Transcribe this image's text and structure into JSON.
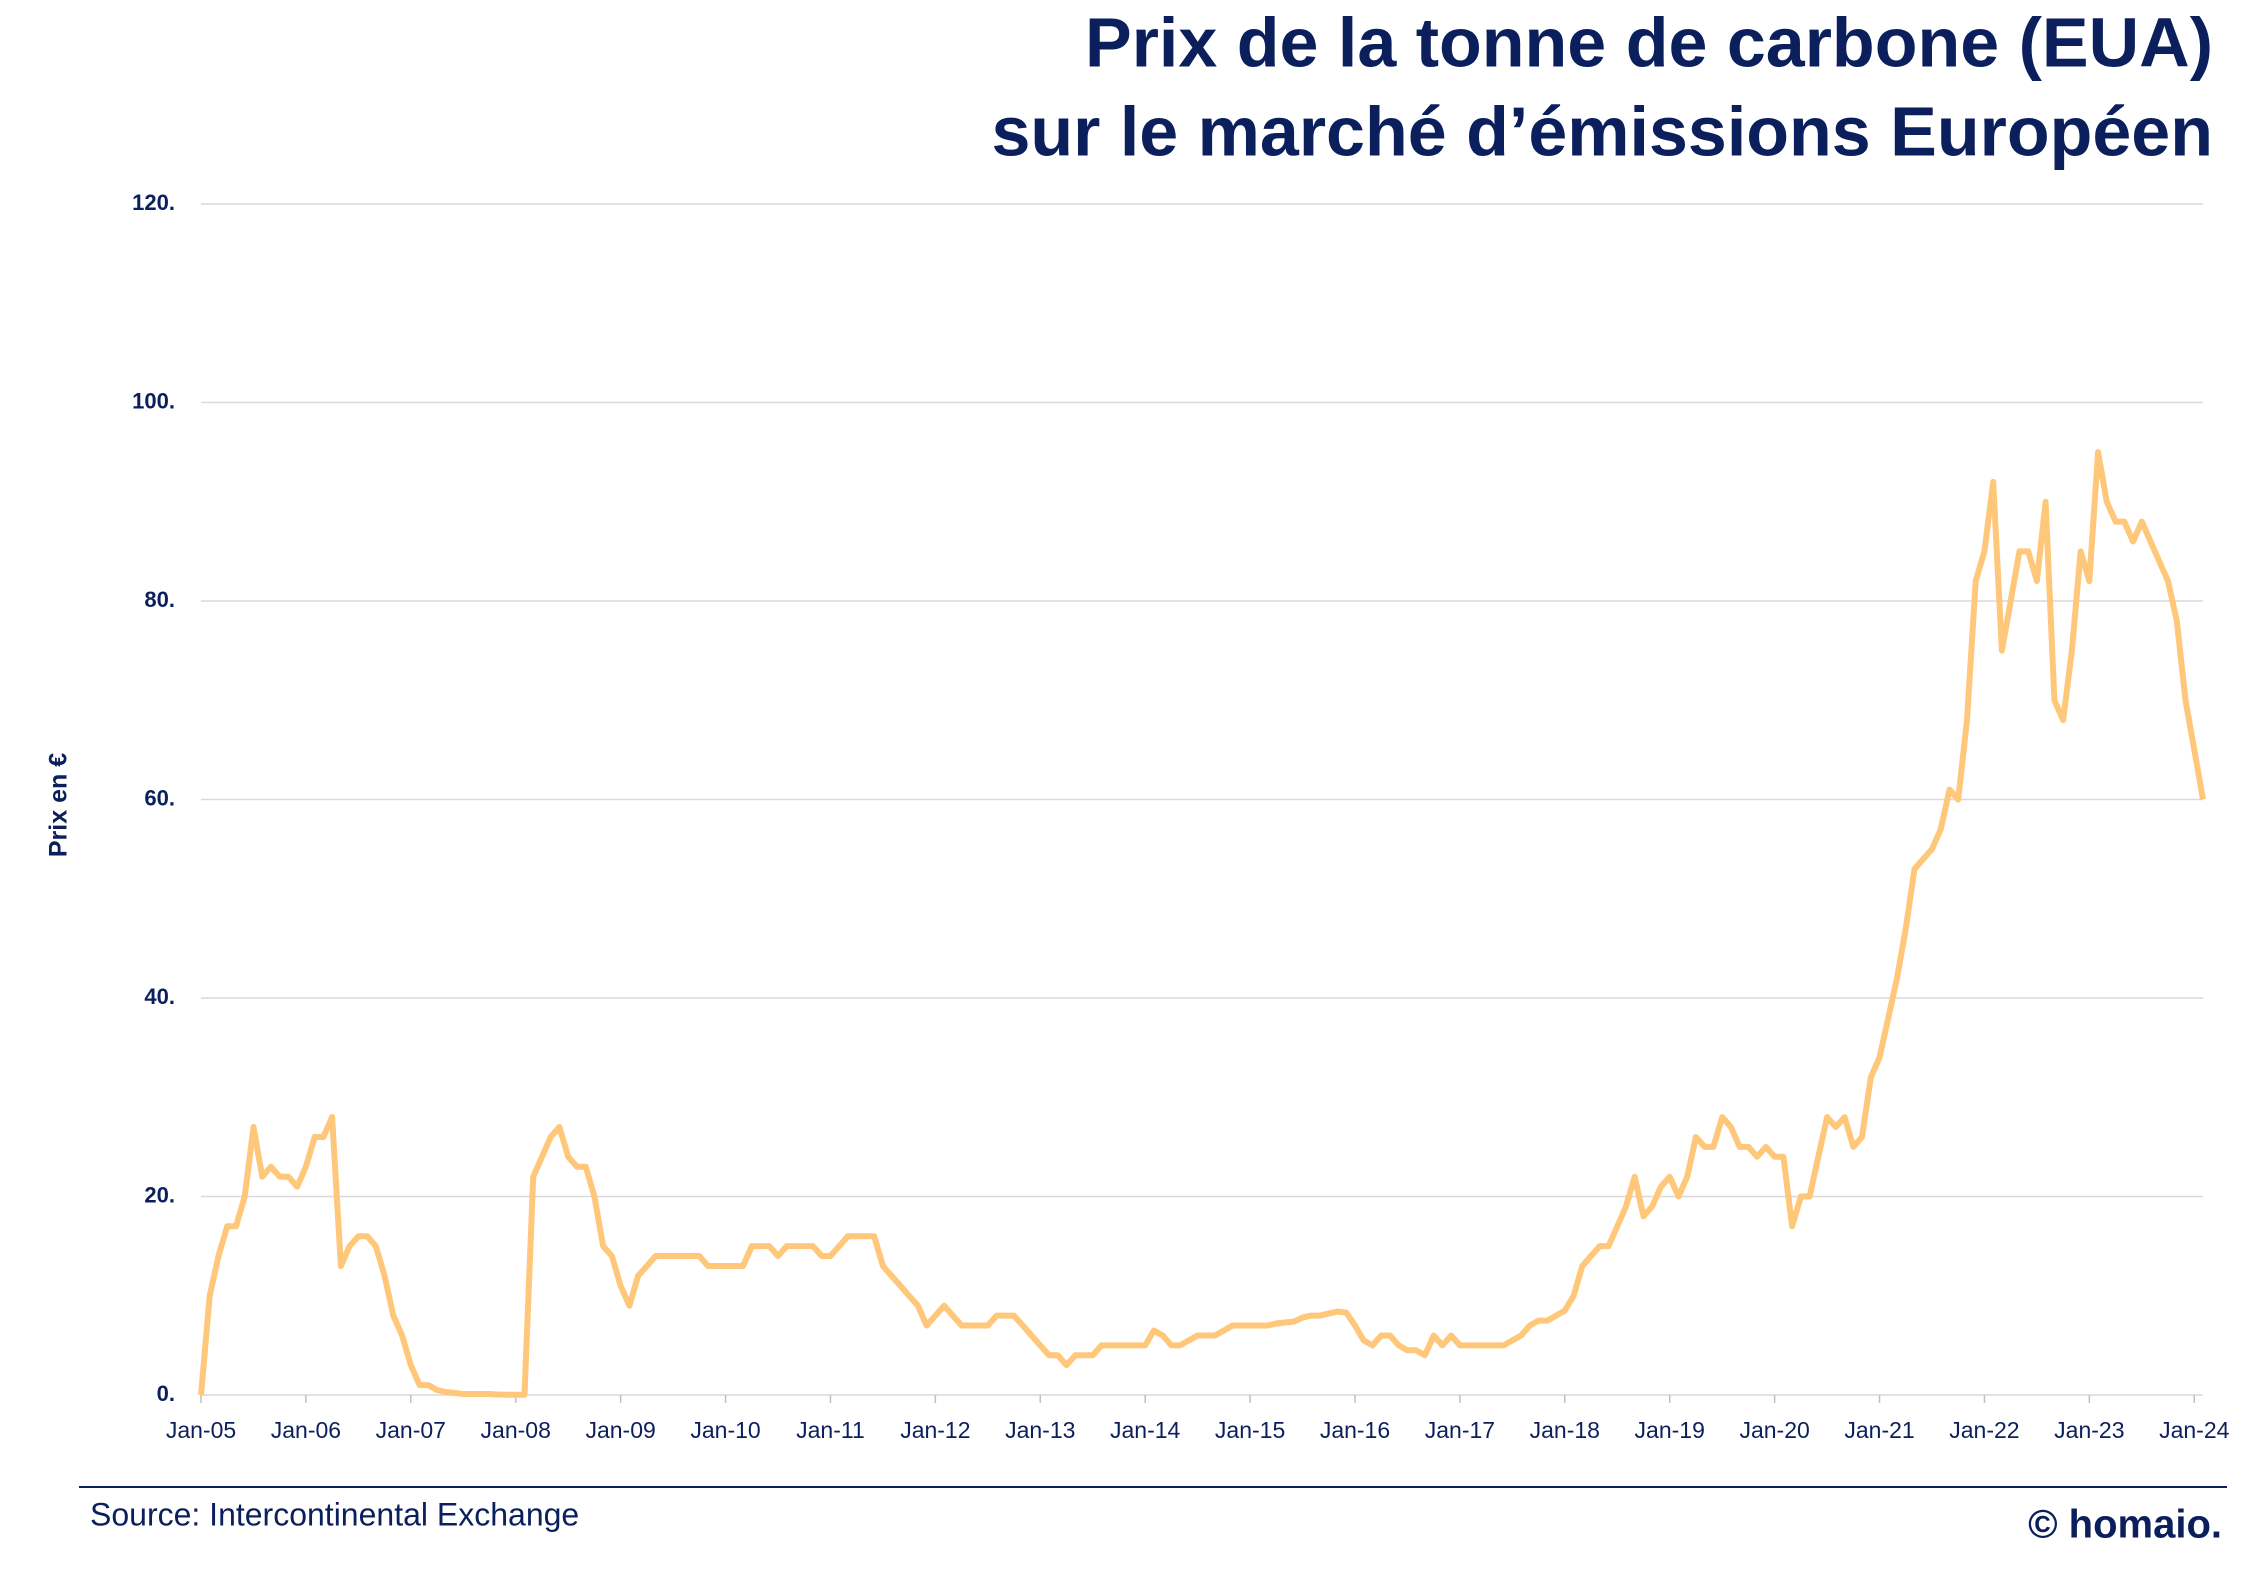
{
  "chart_data": {
    "type": "line",
    "title": [
      "Prix de la tonne de carbone (EUA)",
      "sur le marché d’émissions Européen"
    ],
    "ylabel": "Prix en €",
    "source": "Source: Intercontinental Exchange",
    "brand": "© homaio.",
    "categories": [
      "Jan-05",
      null,
      null,
      null,
      null,
      null,
      null,
      null,
      null,
      null,
      null,
      null,
      "Jan-06",
      null,
      null,
      null,
      null,
      null,
      null,
      null,
      null,
      null,
      null,
      null,
      "Jan-07",
      null,
      null,
      null,
      null,
      null,
      null,
      null,
      null,
      null,
      null,
      null,
      "Jan-08",
      null,
      null,
      null,
      null,
      null,
      null,
      null,
      null,
      null,
      null,
      null,
      "Jan-09",
      null,
      null,
      null,
      null,
      null,
      null,
      null,
      null,
      null,
      null,
      null,
      "Jan-10",
      null,
      null,
      null,
      null,
      null,
      null,
      null,
      null,
      null,
      null,
      null,
      "Jan-11",
      null,
      null,
      null,
      null,
      null,
      null,
      null,
      null,
      null,
      null,
      null,
      "Jan-12",
      null,
      null,
      null,
      null,
      null,
      null,
      null,
      null,
      null,
      null,
      null,
      "Jan-13",
      null,
      null,
      null,
      null,
      null,
      null,
      null,
      null,
      null,
      null,
      null,
      "Jan-14",
      null,
      null,
      null,
      null,
      null,
      null,
      null,
      null,
      null,
      null,
      null,
      "Jan-15",
      null,
      null,
      null,
      null,
      null,
      null,
      null,
      null,
      null,
      null,
      null,
      "Jan-16",
      null,
      null,
      null,
      null,
      null,
      null,
      null,
      null,
      null,
      null,
      null,
      "Jan-17",
      null,
      null,
      null,
      null,
      null,
      null,
      null,
      null,
      null,
      null,
      null,
      "Jan-18",
      null,
      null,
      null,
      null,
      null,
      null,
      null,
      null,
      null,
      null,
      null,
      "Jan-19",
      null,
      null,
      null,
      null,
      null,
      null,
      null,
      null,
      null,
      null,
      null,
      "Jan-20",
      null,
      null,
      null,
      null,
      null,
      null,
      null,
      null,
      null,
      null,
      null,
      "Jan-21",
      null,
      null,
      null,
      null,
      null,
      null,
      null,
      null,
      null,
      null,
      null,
      "Jan-22",
      null,
      null,
      null,
      null,
      null,
      null,
      null,
      null,
      null,
      null,
      null,
      "Jan-23",
      null,
      null,
      null,
      null,
      null,
      null,
      null,
      null,
      null,
      null,
      null,
      "Jan-24",
      null
    ],
    "values": [
      0,
      10,
      14,
      17,
      17,
      20,
      27,
      22,
      23,
      22,
      22,
      21,
      23,
      26,
      26,
      28,
      13,
      15,
      16,
      16,
      15,
      12,
      8,
      6,
      3,
      1,
      1,
      0.5,
      0.3,
      0.2,
      0.1,
      0.1,
      0.1,
      0.1,
      0.05,
      0.03,
      0.02,
      0.02,
      22,
      24,
      26,
      27,
      24,
      23,
      23,
      20,
      15,
      14,
      11,
      9,
      12,
      13,
      14,
      14,
      14,
      14,
      14,
      14,
      13,
      13,
      13,
      13,
      13,
      15,
      15,
      15,
      14,
      15,
      15,
      15,
      15,
      14,
      14,
      15,
      16,
      16,
      16,
      16,
      13,
      12,
      11,
      10,
      9,
      7,
      8,
      9,
      8,
      7,
      7,
      7,
      7,
      8,
      8,
      8,
      7,
      6,
      5,
      4,
      4,
      3,
      4,
      4,
      4,
      5,
      5,
      5,
      5,
      5,
      5,
      6.5,
      6,
      5,
      5,
      5.5,
      6,
      6,
      6,
      6.5,
      7,
      7,
      7,
      7,
      7,
      7.2,
      7.3,
      7.4,
      7.8,
      8,
      8,
      8.2,
      8.4,
      8.3,
      7,
      5.5,
      5,
      6,
      6,
      5,
      4.5,
      4.5,
      4,
      6,
      5,
      6,
      5,
      5,
      5,
      5,
      5,
      5,
      5.5,
      6,
      7,
      7.5,
      7.5,
      8,
      8.5,
      10,
      13,
      14,
      15,
      15,
      17,
      19,
      22,
      18,
      19,
      21,
      22,
      20,
      22,
      26,
      25,
      25,
      28,
      27,
      25,
      25,
      24,
      25,
      24,
      24,
      17,
      20,
      20,
      24,
      28,
      27,
      28,
      25,
      26,
      32,
      34,
      38,
      42,
      47,
      53,
      54,
      55,
      57,
      61,
      60,
      68,
      82,
      85,
      92,
      75,
      80,
      85,
      85,
      82,
      90,
      70,
      68,
      75,
      85,
      82,
      95,
      90,
      88,
      88,
      86,
      88,
      86,
      84,
      82,
      78,
      70,
      65,
      60
    ],
    "color": "#ffc77a",
    "ylim": [
      0,
      120
    ],
    "yticks": [
      {
        "value": 0,
        "label": "0."
      },
      {
        "value": 20,
        "label": "20."
      },
      {
        "value": 40,
        "label": "40."
      },
      {
        "value": 60,
        "label": "60."
      },
      {
        "value": 80,
        "label": "80."
      },
      {
        "value": 100,
        "label": "100."
      },
      {
        "value": 120,
        "label": "120."
      }
    ],
    "grid": true
  }
}
